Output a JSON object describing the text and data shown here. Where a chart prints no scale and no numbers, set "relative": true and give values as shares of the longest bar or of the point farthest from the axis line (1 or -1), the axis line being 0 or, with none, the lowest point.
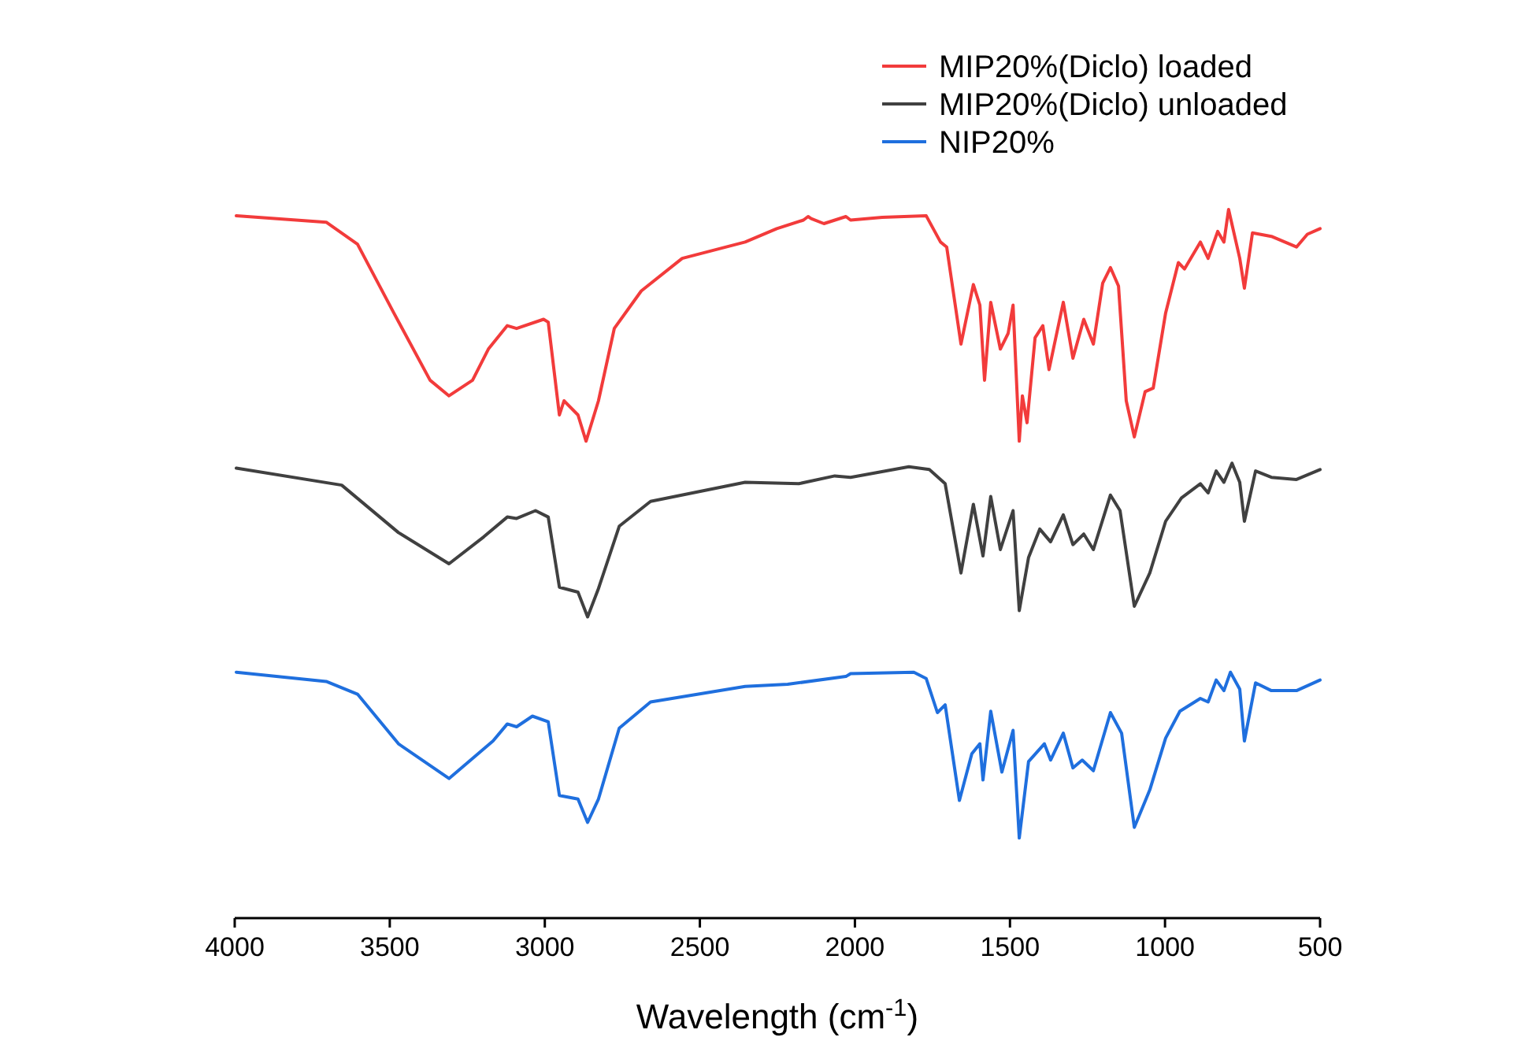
{
  "chart_data": {
    "type": "line",
    "relative": true,
    "xlabel": "Wavelength (cm$^{-1}$)",
    "xlim": [
      4000,
      500
    ],
    "xticks": [
      4000,
      3500,
      3000,
      2500,
      2000,
      1500,
      1000,
      500
    ],
    "legend": "top right",
    "tick_labels": "x",
    "grid": false,
    "series": [
      {
        "name": "MIP20%(Diclo) loaded",
        "color": "#f23b3b",
        "x": [
          3995,
          3705,
          3604,
          3487,
          3370,
          3309,
          3233,
          3182,
          3121,
          3091,
          3004,
          2989,
          2953,
          2938,
          2893,
          2867,
          2827,
          2776,
          2689,
          2557,
          2354,
          2252,
          2166,
          2151,
          2141,
          2100,
          2029,
          2014,
          1912,
          1770,
          1724,
          1704,
          1658,
          1618,
          1597,
          1582,
          1562,
          1531,
          1506,
          1490,
          1470,
          1460,
          1445,
          1419,
          1394,
          1374,
          1328,
          1297,
          1262,
          1231,
          1201,
          1176,
          1150,
          1125,
          1099,
          1064,
          1038,
          998,
          957,
          937,
          886,
          861,
          830,
          810,
          795,
          759,
          744,
          718,
          657,
          576,
          541,
          500
        ],
        "values": [
          0.991,
          0.982,
          0.951,
          0.854,
          0.759,
          0.737,
          0.759,
          0.803,
          0.836,
          0.832,
          0.845,
          0.841,
          0.71,
          0.73,
          0.71,
          0.673,
          0.73,
          0.832,
          0.885,
          0.931,
          0.954,
          0.973,
          0.985,
          0.99,
          0.987,
          0.98,
          0.99,
          0.985,
          0.989,
          0.991,
          0.954,
          0.947,
          0.81,
          0.894,
          0.865,
          0.759,
          0.869,
          0.803,
          0.825,
          0.865,
          0.673,
          0.737,
          0.699,
          0.819,
          0.836,
          0.774,
          0.869,
          0.79,
          0.845,
          0.81,
          0.896,
          0.918,
          0.892,
          0.73,
          0.679,
          0.743,
          0.748,
          0.854,
          0.925,
          0.916,
          0.954,
          0.931,
          0.969,
          0.954,
          1,
          0.931,
          0.889,
          0.967,
          0.962,
          0.947,
          0.965,
          0.973
        ]
      },
      {
        "name": "MIP20%(Diclo) unloaded",
        "color": "#404040",
        "x": [
          3995,
          3655,
          3472,
          3309,
          3197,
          3121,
          3091,
          3030,
          2989,
          2953,
          2893,
          2862,
          2827,
          2760,
          2659,
          2354,
          2181,
          2065,
          2014,
          1826,
          1760,
          1709,
          1658,
          1618,
          1587,
          1562,
          1531,
          1490,
          1470,
          1440,
          1404,
          1369,
          1328,
          1297,
          1262,
          1231,
          1176,
          1145,
          1099,
          1049,
          998,
          947,
          886,
          861,
          835,
          810,
          784,
          759,
          744,
          708,
          657,
          576,
          500
        ],
        "values": [
          0.635,
          0.611,
          0.544,
          0.5,
          0.538,
          0.566,
          0.564,
          0.575,
          0.566,
          0.467,
          0.46,
          0.425,
          0.465,
          0.553,
          0.588,
          0.615,
          0.613,
          0.624,
          0.622,
          0.637,
          0.633,
          0.613,
          0.487,
          0.584,
          0.511,
          0.595,
          0.52,
          0.575,
          0.434,
          0.509,
          0.549,
          0.531,
          0.569,
          0.527,
          0.542,
          0.52,
          0.597,
          0.575,
          0.44,
          0.487,
          0.56,
          0.593,
          0.613,
          0.6,
          0.631,
          0.615,
          0.642,
          0.615,
          0.56,
          0.631,
          0.622,
          0.619,
          0.633
        ]
      },
      {
        "name": "NIP20%",
        "color": "#1f6fde",
        "x": [
          3995,
          3705,
          3604,
          3472,
          3309,
          3167,
          3121,
          3091,
          3040,
          2989,
          2953,
          2893,
          2862,
          2827,
          2760,
          2659,
          2354,
          2217,
          2029,
          2014,
          1810,
          1770,
          1734,
          1709,
          1663,
          1623,
          1597,
          1587,
          1562,
          1526,
          1490,
          1470,
          1440,
          1389,
          1369,
          1328,
          1297,
          1267,
          1231,
          1176,
          1140,
          1099,
          1049,
          998,
          952,
          886,
          861,
          835,
          810,
          789,
          759,
          744,
          708,
          657,
          576,
          500
        ],
        "values": [
          0.347,
          0.334,
          0.316,
          0.246,
          0.197,
          0.25,
          0.274,
          0.27,
          0.285,
          0.277,
          0.173,
          0.168,
          0.135,
          0.168,
          0.268,
          0.305,
          0.327,
          0.33,
          0.341,
          0.345,
          0.347,
          0.338,
          0.29,
          0.301,
          0.166,
          0.232,
          0.246,
          0.195,
          0.292,
          0.206,
          0.265,
          0.113,
          0.221,
          0.246,
          0.223,
          0.261,
          0.212,
          0.223,
          0.208,
          0.29,
          0.261,
          0.128,
          0.181,
          0.254,
          0.292,
          0.31,
          0.305,
          0.336,
          0.321,
          0.347,
          0.323,
          0.25,
          0.332,
          0.321,
          0.321,
          0.336
        ]
      }
    ]
  }
}
